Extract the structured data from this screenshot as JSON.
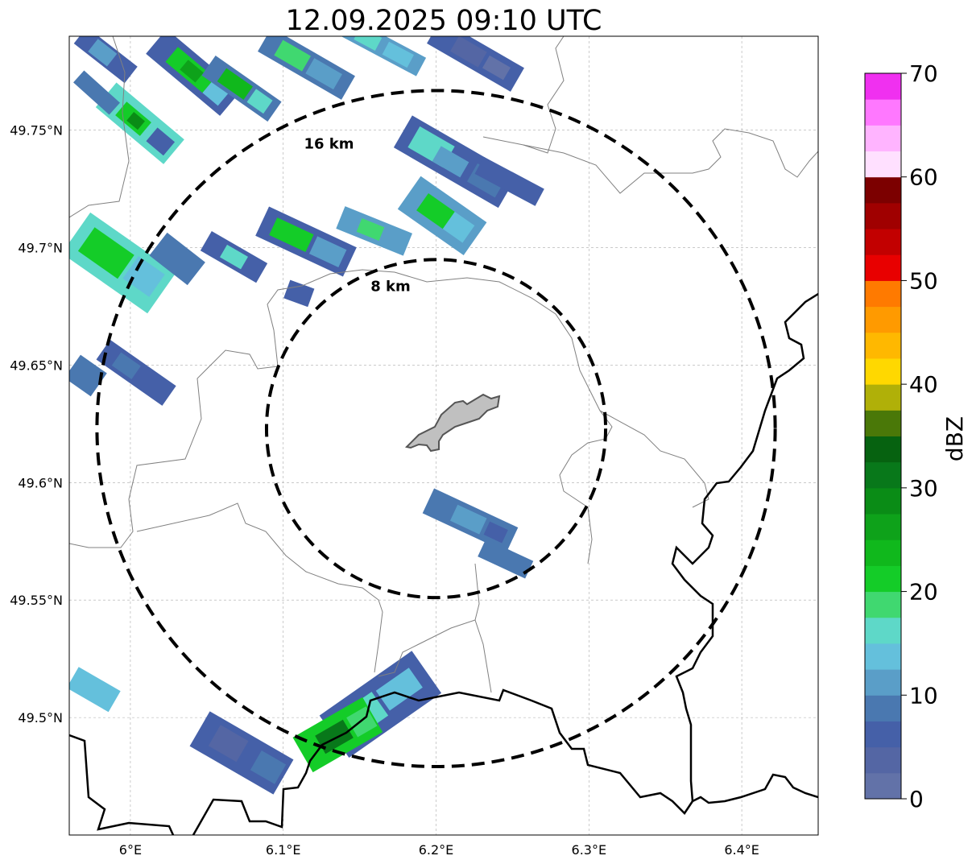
{
  "title": "12.09.2025 09:10 UTC",
  "map": {
    "type": "radar-reflectivity-map",
    "extent": {
      "lon_min": 5.96,
      "lon_max": 6.45,
      "lat_min": 49.45,
      "lat_max": 49.79
    },
    "lon_ticks": [
      {
        "value": 6.0,
        "label": "6°E"
      },
      {
        "value": 6.1,
        "label": "6.1°E"
      },
      {
        "value": 6.2,
        "label": "6.2°E"
      },
      {
        "value": 6.3,
        "label": "6.3°E"
      },
      {
        "value": 6.4,
        "label": "6.4°E"
      }
    ],
    "lat_ticks": [
      {
        "value": 49.5,
        "label": "49.5°N"
      },
      {
        "value": 49.55,
        "label": "49.55°N"
      },
      {
        "value": 49.6,
        "label": "49.6°N"
      },
      {
        "value": 49.65,
        "label": "49.65°N"
      },
      {
        "value": 49.7,
        "label": "49.7°N"
      },
      {
        "value": 49.75,
        "label": "49.75°N"
      }
    ],
    "grid": true,
    "center": {
      "lon": 6.2,
      "lat": 49.623
    },
    "range_rings": [
      {
        "radius_km": 8,
        "label": "8 km"
      },
      {
        "radius_km": 16,
        "label": "16 km"
      }
    ],
    "feature_fill": "#c0c0c0",
    "border_color": "#000000",
    "boundary_color": "#808080"
  },
  "colorbar": {
    "label": "dBZ",
    "min": 0,
    "max": 70,
    "tick_values": [
      0,
      10,
      20,
      30,
      40,
      50,
      60,
      70
    ],
    "tick_labels": [
      "0",
      "10",
      "20",
      "30",
      "40",
      "50",
      "60",
      "70"
    ],
    "colors": [
      "#6272a8",
      "#5466a4",
      "#4560a8",
      "#4a78b0",
      "#5a9ec8",
      "#64c0dc",
      "#5ed8c8",
      "#40d870",
      "#14cc28",
      "#10b81c",
      "#0ea21a",
      "#0a8c16",
      "#08781a",
      "#066210",
      "#4a7808",
      "#b0b008",
      "#ffd800",
      "#ffb800",
      "#ff9a00",
      "#ff7a00",
      "#e80000",
      "#c20000",
      "#a00000",
      "#7c0000",
      "#ffe0ff",
      "#ffb4ff",
      "#ff78ff",
      "#f030f0"
    ]
  }
}
